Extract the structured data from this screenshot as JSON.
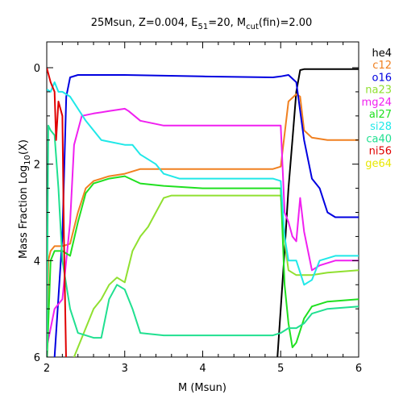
{
  "chart_data": {
    "type": "line",
    "title": {
      "prefix": "25Msun, Z=0.004, E",
      "sub1": "51",
      "mid": "=20, M",
      "sub2": "cut",
      "suffix": "(fin)=2.00"
    },
    "xlabel": "M (Msun)",
    "ylabel": {
      "prefix": "Mass Fraction Log",
      "sub": "10",
      "suffix": "(X)"
    },
    "xlim": [
      2,
      6
    ],
    "ylim": [
      -6,
      0.5
    ],
    "x_ticks": [
      2,
      3,
      4,
      5,
      6
    ],
    "x_tick_labels": [
      "2",
      "3",
      "4",
      "5",
      "6"
    ],
    "y_ticks": [
      0,
      -2,
      -4,
      -6
    ],
    "y_tick_labels": [
      "0",
      "2",
      "4",
      "6"
    ],
    "grid": false,
    "legend_position": "right",
    "series": [
      {
        "name": "he4",
        "color": "#000000",
        "points": [
          [
            4.95,
            -6.2
          ],
          [
            5.0,
            -5.0
          ],
          [
            5.05,
            -3.8
          ],
          [
            5.1,
            -2.5
          ],
          [
            5.15,
            -1.5
          ],
          [
            5.2,
            -0.5
          ],
          [
            5.25,
            -0.05
          ],
          [
            5.3,
            -0.03
          ],
          [
            6.0,
            -0.03
          ]
        ]
      },
      {
        "name": "c12",
        "color": "#f08020",
        "points": [
          [
            2.0,
            -6.2
          ],
          [
            2.02,
            -4.0
          ],
          [
            2.05,
            -3.8
          ],
          [
            2.1,
            -3.7
          ],
          [
            2.2,
            -3.7
          ],
          [
            2.3,
            -3.65
          ],
          [
            2.4,
            -3.0
          ],
          [
            2.5,
            -2.5
          ],
          [
            2.6,
            -2.35
          ],
          [
            2.8,
            -2.25
          ],
          [
            3.0,
            -2.2
          ],
          [
            3.2,
            -2.1
          ],
          [
            4.0,
            -2.1
          ],
          [
            4.9,
            -2.1
          ],
          [
            5.0,
            -2.05
          ],
          [
            5.1,
            -0.7
          ],
          [
            5.2,
            -0.55
          ],
          [
            5.25,
            -0.6
          ],
          [
            5.3,
            -1.3
          ],
          [
            5.4,
            -1.45
          ],
          [
            5.6,
            -1.5
          ],
          [
            6.0,
            -1.5
          ]
        ]
      },
      {
        "name": "o16",
        "color": "#0000e0",
        "points": [
          [
            2.0,
            -6.2
          ],
          [
            2.1,
            -6.0
          ],
          [
            2.2,
            -3.5
          ],
          [
            2.25,
            -0.6
          ],
          [
            2.3,
            -0.2
          ],
          [
            2.4,
            -0.15
          ],
          [
            3.0,
            -0.15
          ],
          [
            4.0,
            -0.18
          ],
          [
            4.9,
            -0.2
          ],
          [
            5.0,
            -0.18
          ],
          [
            5.1,
            -0.15
          ],
          [
            5.2,
            -0.3
          ],
          [
            5.3,
            -1.5
          ],
          [
            5.4,
            -2.3
          ],
          [
            5.5,
            -2.5
          ],
          [
            5.6,
            -3.0
          ],
          [
            5.7,
            -3.1
          ],
          [
            6.0,
            -3.1
          ]
        ]
      },
      {
        "name": "na23",
        "color": "#90e030",
        "points": [
          [
            2.3,
            -6.2
          ],
          [
            2.4,
            -5.8
          ],
          [
            2.6,
            -5.0
          ],
          [
            2.7,
            -4.8
          ],
          [
            2.8,
            -4.5
          ],
          [
            2.9,
            -4.35
          ],
          [
            3.0,
            -4.45
          ],
          [
            3.1,
            -3.8
          ],
          [
            3.2,
            -3.5
          ],
          [
            3.3,
            -3.3
          ],
          [
            3.4,
            -3.0
          ],
          [
            3.5,
            -2.7
          ],
          [
            3.6,
            -2.65
          ],
          [
            4.0,
            -2.65
          ],
          [
            5.0,
            -2.65
          ],
          [
            5.05,
            -3.6
          ],
          [
            5.1,
            -4.2
          ],
          [
            5.2,
            -4.3
          ],
          [
            5.4,
            -4.3
          ],
          [
            5.6,
            -4.25
          ],
          [
            6.0,
            -4.2
          ]
        ]
      },
      {
        "name": "mg24",
        "color": "#f020f0",
        "points": [
          [
            2.0,
            -5.8
          ],
          [
            2.1,
            -5.0
          ],
          [
            2.2,
            -4.8
          ],
          [
            2.3,
            -3.2
          ],
          [
            2.35,
            -1.6
          ],
          [
            2.45,
            -1.0
          ],
          [
            2.6,
            -0.95
          ],
          [
            2.8,
            -0.9
          ],
          [
            3.0,
            -0.85
          ],
          [
            3.05,
            -0.9
          ],
          [
            3.2,
            -1.1
          ],
          [
            3.5,
            -1.2
          ],
          [
            4.0,
            -1.2
          ],
          [
            5.0,
            -1.2
          ],
          [
            5.05,
            -3.0
          ],
          [
            5.1,
            -3.2
          ],
          [
            5.15,
            -3.5
          ],
          [
            5.2,
            -3.6
          ],
          [
            5.25,
            -2.7
          ],
          [
            5.3,
            -3.4
          ],
          [
            5.4,
            -4.2
          ],
          [
            5.5,
            -4.1
          ],
          [
            5.7,
            -4.0
          ],
          [
            6.0,
            -4.0
          ]
        ]
      },
      {
        "name": "al27",
        "color": "#20e020",
        "points": [
          [
            2.0,
            -6.2
          ],
          [
            2.05,
            -4.0
          ],
          [
            2.1,
            -3.8
          ],
          [
            2.2,
            -3.8
          ],
          [
            2.3,
            -3.9
          ],
          [
            2.4,
            -3.2
          ],
          [
            2.5,
            -2.6
          ],
          [
            2.6,
            -2.4
          ],
          [
            2.8,
            -2.3
          ],
          [
            3.0,
            -2.25
          ],
          [
            3.2,
            -2.4
          ],
          [
            3.5,
            -2.45
          ],
          [
            4.0,
            -2.5
          ],
          [
            5.0,
            -2.5
          ],
          [
            5.05,
            -4.5
          ],
          [
            5.1,
            -5.3
          ],
          [
            5.15,
            -5.8
          ],
          [
            5.2,
            -5.7
          ],
          [
            5.3,
            -5.2
          ],
          [
            5.4,
            -4.95
          ],
          [
            5.6,
            -4.85
          ],
          [
            6.0,
            -4.8
          ]
        ]
      },
      {
        "name": "si28",
        "color": "#20e8e8",
        "points": [
          [
            2.0,
            -0.45
          ],
          [
            2.05,
            -0.5
          ],
          [
            2.1,
            -0.3
          ],
          [
            2.15,
            -0.5
          ],
          [
            2.2,
            -0.5
          ],
          [
            2.3,
            -0.6
          ],
          [
            2.5,
            -1.1
          ],
          [
            2.7,
            -1.5
          ],
          [
            3.0,
            -1.6
          ],
          [
            3.1,
            -1.6
          ],
          [
            3.2,
            -1.8
          ],
          [
            3.4,
            -2.0
          ],
          [
            3.5,
            -2.2
          ],
          [
            3.7,
            -2.3
          ],
          [
            4.0,
            -2.3
          ],
          [
            4.9,
            -2.3
          ],
          [
            5.0,
            -2.35
          ],
          [
            5.05,
            -3.5
          ],
          [
            5.1,
            -4.0
          ],
          [
            5.2,
            -4.0
          ],
          [
            5.3,
            -4.5
          ],
          [
            5.4,
            -4.4
          ],
          [
            5.5,
            -4.0
          ],
          [
            5.7,
            -3.9
          ],
          [
            6.0,
            -3.9
          ]
        ]
      },
      {
        "name": "ca40",
        "color": "#20e090",
        "points": [
          [
            2.0,
            -6.2
          ],
          [
            2.02,
            -1.2
          ],
          [
            2.05,
            -1.3
          ],
          [
            2.1,
            -1.4
          ],
          [
            2.15,
            -2.5
          ],
          [
            2.2,
            -4.0
          ],
          [
            2.3,
            -5.0
          ],
          [
            2.4,
            -5.5
          ],
          [
            2.6,
            -5.6
          ],
          [
            2.7,
            -5.6
          ],
          [
            2.8,
            -4.8
          ],
          [
            2.9,
            -4.5
          ],
          [
            3.0,
            -4.6
          ],
          [
            3.1,
            -5.0
          ],
          [
            3.2,
            -5.5
          ],
          [
            3.5,
            -5.55
          ],
          [
            4.0,
            -5.55
          ],
          [
            4.9,
            -5.55
          ],
          [
            5.0,
            -5.5
          ],
          [
            5.1,
            -5.4
          ],
          [
            5.2,
            -5.4
          ],
          [
            5.3,
            -5.3
          ],
          [
            5.4,
            -5.1
          ],
          [
            5.6,
            -5.0
          ],
          [
            6.0,
            -4.95
          ]
        ]
      },
      {
        "name": "ni56",
        "color": "#e00000",
        "points": [
          [
            2.0,
            0.0
          ],
          [
            2.05,
            -0.3
          ],
          [
            2.1,
            -0.5
          ],
          [
            2.12,
            -1.5
          ],
          [
            2.15,
            -0.7
          ],
          [
            2.2,
            -1.0
          ],
          [
            2.22,
            -3.5
          ],
          [
            2.25,
            -6.2
          ]
        ]
      },
      {
        "name": "ge64",
        "color": "#e8e800",
        "points": []
      }
    ]
  }
}
